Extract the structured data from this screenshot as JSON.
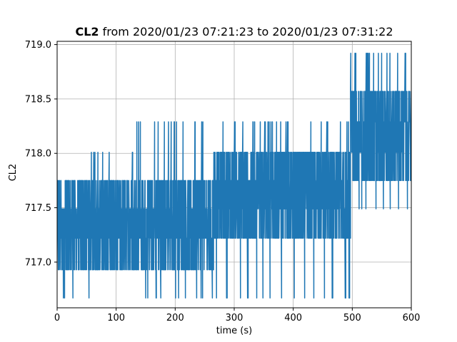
{
  "chart_data": {
    "type": "line",
    "title": {
      "bold": "CL2",
      "rest": " from 2020/01/23 07:21:23 to 2020/01/23 07:31:22"
    },
    "xlabel": "time (s)",
    "ylabel": "CL2",
    "xlim": [
      0,
      600
    ],
    "ylim": [
      716.58,
      719.03
    ],
    "xticks": [
      0,
      100,
      200,
      300,
      400,
      500,
      600
    ],
    "yticks": [
      717.0,
      717.5,
      718.0,
      718.5,
      719.0
    ],
    "ytick_labels": [
      "717.0",
      "717.5",
      "718.0",
      "718.5",
      "719.0"
    ],
    "grid": true,
    "series": [
      {
        "color": "#1f77b4",
        "segments": [
          {
            "x_range": [
              0,
              55
            ],
            "levels": [
              716.93,
              717.22,
              717.49,
              717.75
            ],
            "low_spike": 716.67,
            "high_spike": 717.75
          },
          {
            "x_range": [
              55,
              135
            ],
            "levels": [
              716.93,
              717.22,
              717.49,
              717.75
            ],
            "low_spike": 716.93,
            "high_spike": 718.01
          },
          {
            "x_range": [
              135,
              265
            ],
            "levels": [
              716.93,
              717.22,
              717.49,
              717.75
            ],
            "low_spike": 716.67,
            "high_spike": 718.29
          },
          {
            "x_range": [
              265,
              497
            ],
            "levels": [
              717.22,
              717.49,
              717.75,
              718.01
            ],
            "low_spike": 716.67,
            "high_spike": 718.29
          },
          {
            "x_range": [
              497,
              600
            ],
            "levels": [
              717.75,
              718.01,
              718.29,
              718.57
            ],
            "low_spike": 717.49,
            "high_spike": 718.92
          }
        ],
        "samples": 600
      }
    ]
  }
}
